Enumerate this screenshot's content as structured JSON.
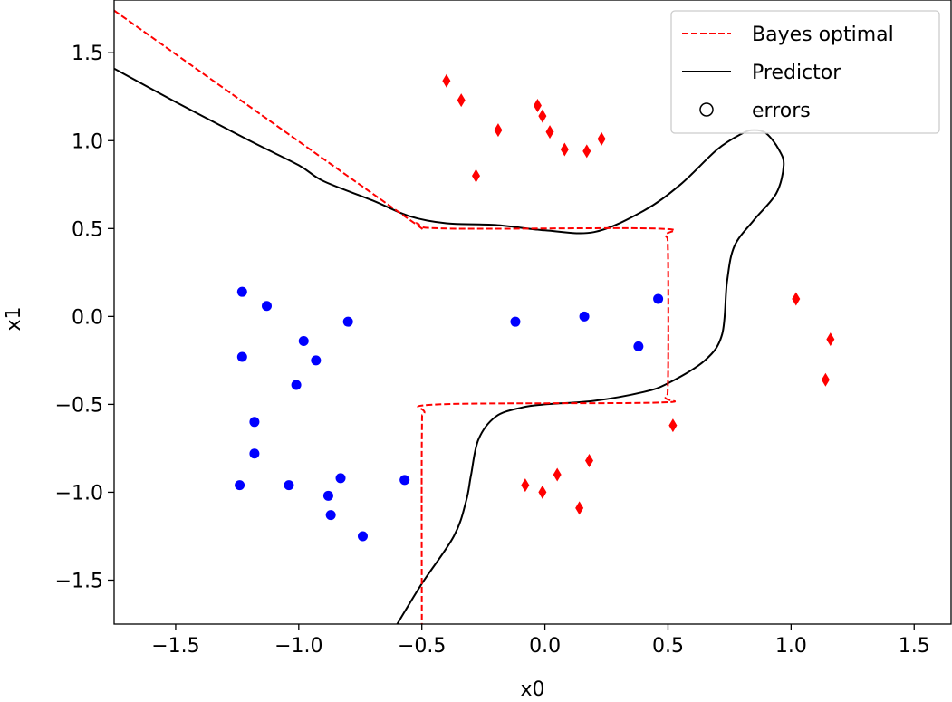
{
  "chart_data": {
    "type": "scatter",
    "xlabel": "x0",
    "ylabel": "x1",
    "xlim": [
      -1.75,
      1.65
    ],
    "ylim": [
      -1.75,
      1.8
    ],
    "xticks": [
      {
        "value": -1.5,
        "label": "−1.5"
      },
      {
        "value": -1.0,
        "label": "−1.0"
      },
      {
        "value": -0.5,
        "label": "−0.5"
      },
      {
        "value": 0.0,
        "label": "0.0"
      },
      {
        "value": 0.5,
        "label": "0.5"
      },
      {
        "value": 1.0,
        "label": "1.0"
      },
      {
        "value": 1.5,
        "label": "1.5"
      }
    ],
    "yticks": [
      {
        "value": -1.5,
        "label": "−1.5"
      },
      {
        "value": -1.0,
        "label": "−1.0"
      },
      {
        "value": -0.5,
        "label": "−0.5"
      },
      {
        "value": 0.0,
        "label": "0.0"
      },
      {
        "value": 0.5,
        "label": "0.5"
      },
      {
        "value": 1.0,
        "label": "1.0"
      },
      {
        "value": 1.5,
        "label": "1.5"
      }
    ],
    "legend_position": "top-right",
    "legend": [
      {
        "label": "Bayes optimal",
        "style": "dashed-line",
        "color": "#ff0000"
      },
      {
        "label": "Predictor",
        "style": "solid-line",
        "color": "#000000"
      },
      {
        "label": "errors",
        "style": "hollow-circle",
        "color": "#000000"
      }
    ],
    "bayes_optimal": {
      "color": "#ff0000",
      "points": [
        [
          -1.75,
          1.74
        ],
        [
          -0.6,
          0.6
        ],
        [
          -0.52,
          0.53
        ],
        [
          -0.4,
          0.5
        ],
        [
          0.45,
          0.5
        ],
        [
          0.49,
          0.46
        ],
        [
          0.5,
          0.35
        ],
        [
          0.5,
          -0.35
        ],
        [
          0.49,
          -0.46
        ],
        [
          0.45,
          -0.49
        ],
        [
          -0.43,
          -0.5
        ],
        [
          -0.49,
          -0.55
        ],
        [
          -0.5,
          -0.7
        ],
        [
          -0.5,
          -1.75
        ]
      ]
    },
    "predictor": {
      "color": "#000000",
      "points": [
        [
          -1.75,
          1.41
        ],
        [
          -1.5,
          1.22
        ],
        [
          -1.2,
          1.0
        ],
        [
          -1.0,
          0.86
        ],
        [
          -0.9,
          0.77
        ],
        [
          -0.7,
          0.66
        ],
        [
          -0.55,
          0.57
        ],
        [
          -0.4,
          0.53
        ],
        [
          -0.2,
          0.52
        ],
        [
          0.0,
          0.49
        ],
        [
          0.2,
          0.48
        ],
        [
          0.4,
          0.6
        ],
        [
          0.55,
          0.75
        ],
        [
          0.7,
          0.95
        ],
        [
          0.8,
          1.04
        ],
        [
          0.85,
          1.06
        ],
        [
          0.9,
          1.04
        ],
        [
          0.95,
          0.95
        ],
        [
          0.97,
          0.86
        ],
        [
          0.94,
          0.7
        ],
        [
          0.85,
          0.55
        ],
        [
          0.77,
          0.4
        ],
        [
          0.74,
          0.2
        ],
        [
          0.72,
          -0.1
        ],
        [
          0.65,
          -0.25
        ],
        [
          0.5,
          -0.38
        ],
        [
          0.4,
          -0.43
        ],
        [
          0.2,
          -0.48
        ],
        [
          0.0,
          -0.5
        ],
        [
          -0.1,
          -0.52
        ],
        [
          -0.2,
          -0.57
        ],
        [
          -0.27,
          -0.7
        ],
        [
          -0.3,
          -0.9
        ],
        [
          -0.32,
          -1.05
        ],
        [
          -0.37,
          -1.25
        ],
        [
          -0.5,
          -1.52
        ],
        [
          -0.6,
          -1.75
        ]
      ]
    },
    "class_0": {
      "color": "#0000ff",
      "marker": "circle",
      "points": [
        [
          -1.23,
          0.14
        ],
        [
          -1.13,
          0.06
        ],
        [
          -1.23,
          -0.23
        ],
        [
          -0.98,
          -0.14
        ],
        [
          -0.8,
          -0.03
        ],
        [
          -0.93,
          -0.25
        ],
        [
          -1.01,
          -0.39
        ],
        [
          -1.18,
          -0.6
        ],
        [
          -1.18,
          -0.78
        ],
        [
          -1.24,
          -0.96
        ],
        [
          -1.04,
          -0.96
        ],
        [
          -0.88,
          -1.02
        ],
        [
          -0.87,
          -1.13
        ],
        [
          -0.83,
          -0.92
        ],
        [
          -0.74,
          -1.25
        ],
        [
          -0.57,
          -0.93
        ],
        [
          -0.12,
          -0.03
        ],
        [
          0.16,
          0.0
        ],
        [
          0.38,
          -0.17
        ],
        [
          0.46,
          0.1
        ]
      ]
    },
    "class_1": {
      "color": "#ff0000",
      "marker": "diamond",
      "points": [
        [
          -0.4,
          1.34
        ],
        [
          -0.34,
          1.23
        ],
        [
          -0.19,
          1.06
        ],
        [
          -0.28,
          0.8
        ],
        [
          -0.03,
          1.2
        ],
        [
          -0.01,
          1.14
        ],
        [
          0.02,
          1.05
        ],
        [
          0.08,
          0.95
        ],
        [
          0.17,
          0.94
        ],
        [
          0.23,
          1.01
        ],
        [
          1.02,
          0.1
        ],
        [
          1.16,
          -0.13
        ],
        [
          1.14,
          -0.36
        ],
        [
          0.52,
          -0.62
        ],
        [
          0.18,
          -0.82
        ],
        [
          0.05,
          -0.9
        ],
        [
          -0.08,
          -0.96
        ],
        [
          -0.01,
          -1.0
        ],
        [
          0.14,
          -1.09
        ]
      ]
    }
  }
}
